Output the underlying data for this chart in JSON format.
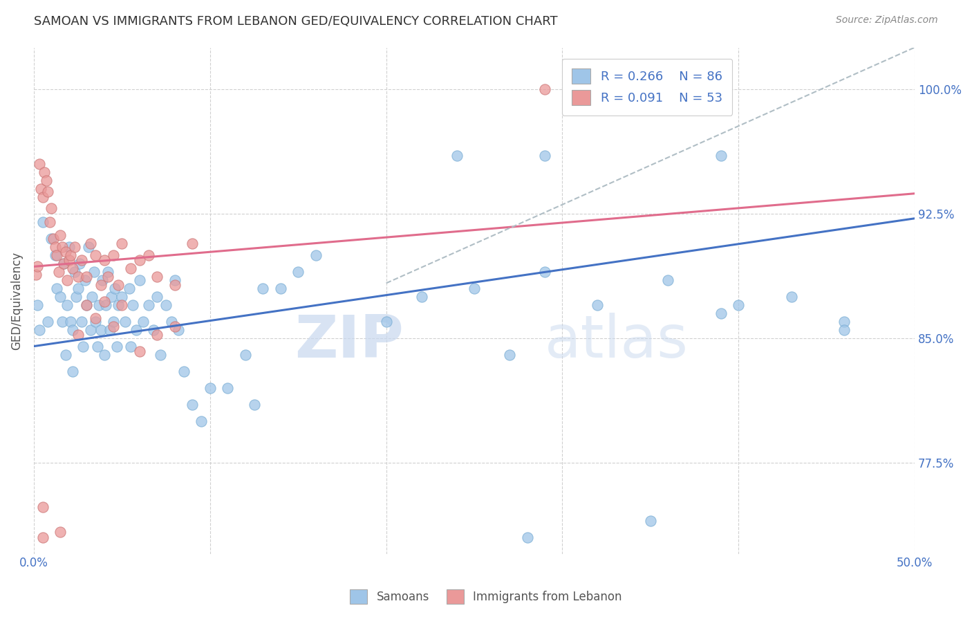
{
  "title": "SAMOAN VS IMMIGRANTS FROM LEBANON GED/EQUIVALENCY CORRELATION CHART",
  "source": "Source: ZipAtlas.com",
  "ylabel": "GED/Equivalency",
  "xlim": [
    0.0,
    0.5
  ],
  "ylim": [
    0.72,
    1.025
  ],
  "xticks": [
    0.0,
    0.1,
    0.2,
    0.3,
    0.4,
    0.5
  ],
  "xticklabels": [
    "0.0%",
    "",
    "",
    "",
    "",
    "50.0%"
  ],
  "yticks": [
    0.775,
    0.85,
    0.925,
    1.0
  ],
  "yticklabels": [
    "77.5%",
    "85.0%",
    "92.5%",
    "100.0%"
  ],
  "tick_color": "#4472c4",
  "blue_color": "#9fc5e8",
  "pink_color": "#ea9999",
  "trend_blue_color": "#4472c4",
  "trend_pink_color": "#e06c8c",
  "trend_dashed_color": "#b0bec5",
  "watermark_zip": "ZIP",
  "watermark_atlas": "atlas",
  "samoan_scatter_x": [
    0.002,
    0.003,
    0.005,
    0.008,
    0.01,
    0.012,
    0.013,
    0.015,
    0.016,
    0.017,
    0.018,
    0.019,
    0.02,
    0.021,
    0.022,
    0.022,
    0.023,
    0.024,
    0.025,
    0.026,
    0.027,
    0.028,
    0.029,
    0.03,
    0.031,
    0.032,
    0.033,
    0.034,
    0.035,
    0.036,
    0.037,
    0.038,
    0.039,
    0.04,
    0.041,
    0.042,
    0.043,
    0.044,
    0.045,
    0.046,
    0.047,
    0.048,
    0.05,
    0.052,
    0.054,
    0.055,
    0.056,
    0.058,
    0.06,
    0.062,
    0.065,
    0.068,
    0.07,
    0.072,
    0.075,
    0.078,
    0.08,
    0.082,
    0.085,
    0.09,
    0.095,
    0.1,
    0.11,
    0.12,
    0.125,
    0.13,
    0.14,
    0.15,
    0.16,
    0.2,
    0.22,
    0.25,
    0.29,
    0.32,
    0.36,
    0.39,
    0.43,
    0.46,
    0.29,
    0.39,
    0.27,
    0.24,
    0.46,
    0.4,
    0.35,
    0.28
  ],
  "samoan_scatter_y": [
    0.87,
    0.855,
    0.92,
    0.86,
    0.91,
    0.9,
    0.88,
    0.875,
    0.86,
    0.895,
    0.84,
    0.87,
    0.905,
    0.86,
    0.855,
    0.83,
    0.89,
    0.875,
    0.88,
    0.895,
    0.86,
    0.845,
    0.885,
    0.87,
    0.905,
    0.855,
    0.875,
    0.89,
    0.86,
    0.845,
    0.87,
    0.855,
    0.885,
    0.84,
    0.87,
    0.89,
    0.855,
    0.875,
    0.86,
    0.88,
    0.845,
    0.87,
    0.875,
    0.86,
    0.88,
    0.845,
    0.87,
    0.855,
    0.885,
    0.86,
    0.87,
    0.855,
    0.875,
    0.84,
    0.87,
    0.86,
    0.885,
    0.855,
    0.83,
    0.81,
    0.8,
    0.82,
    0.82,
    0.84,
    0.81,
    0.88,
    0.88,
    0.89,
    0.9,
    0.86,
    0.875,
    0.88,
    0.89,
    0.87,
    0.885,
    0.865,
    0.875,
    0.86,
    0.96,
    0.96,
    0.84,
    0.96,
    0.855,
    0.87,
    0.74,
    0.73
  ],
  "lebanon_scatter_x": [
    0.001,
    0.002,
    0.003,
    0.004,
    0.005,
    0.006,
    0.007,
    0.008,
    0.009,
    0.01,
    0.011,
    0.012,
    0.013,
    0.014,
    0.015,
    0.016,
    0.017,
    0.018,
    0.019,
    0.02,
    0.021,
    0.022,
    0.023,
    0.025,
    0.027,
    0.03,
    0.032,
    0.035,
    0.038,
    0.04,
    0.042,
    0.045,
    0.048,
    0.05,
    0.055,
    0.06,
    0.065,
    0.07,
    0.08,
    0.09,
    0.025,
    0.03,
    0.035,
    0.04,
    0.045,
    0.05,
    0.06,
    0.07,
    0.08,
    0.29,
    0.005,
    0.015,
    0.005
  ],
  "lebanon_scatter_y": [
    0.888,
    0.893,
    0.955,
    0.94,
    0.935,
    0.95,
    0.945,
    0.938,
    0.92,
    0.928,
    0.91,
    0.905,
    0.9,
    0.89,
    0.912,
    0.905,
    0.895,
    0.902,
    0.885,
    0.897,
    0.9,
    0.892,
    0.905,
    0.887,
    0.897,
    0.887,
    0.907,
    0.9,
    0.882,
    0.897,
    0.887,
    0.9,
    0.882,
    0.907,
    0.892,
    0.897,
    0.9,
    0.887,
    0.882,
    0.907,
    0.852,
    0.87,
    0.862,
    0.872,
    0.857,
    0.87,
    0.842,
    0.852,
    0.857,
    1.0,
    0.73,
    0.733,
    0.748
  ],
  "blue_trend_x": [
    0.0,
    0.5
  ],
  "blue_trend_y": [
    0.845,
    0.922
  ],
  "pink_trend_x": [
    0.0,
    0.5
  ],
  "pink_trend_y": [
    0.893,
    0.937
  ],
  "dashed_trend_x": [
    0.2,
    0.5
  ],
  "dashed_trend_y": [
    0.883,
    1.025
  ]
}
